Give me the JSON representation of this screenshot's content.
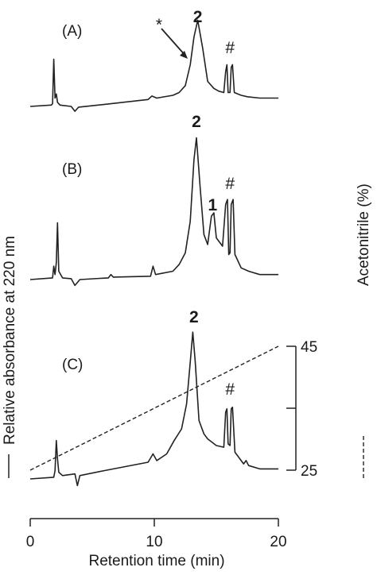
{
  "chart_data": {
    "type": "line",
    "title": "",
    "xlabel": "Retention time (min)",
    "ylabel_left": "Relative absorbance at 220 nm",
    "ylabel_right": "Acetonitrile (%)",
    "xlim": [
      0,
      20
    ],
    "x_ticks": [
      {
        "value": 0,
        "label": "0"
      },
      {
        "value": 10,
        "label": "10"
      },
      {
        "value": 20,
        "label": "20"
      }
    ],
    "y2_ticks": [
      {
        "value": 45,
        "label": "45"
      },
      {
        "value": 35,
        "label": ""
      },
      {
        "value": 25,
        "label": "25"
      }
    ],
    "y2lim": [
      25,
      45
    ],
    "legend": [
      {
        "symbol": "solid",
        "label": "Relative absorbance at 220 nm"
      },
      {
        "symbol": "dashed",
        "label": "Acetonitrile (%)"
      }
    ],
    "panels": [
      {
        "label": "(A)",
        "peak_labels": [
          {
            "text": "2",
            "x": 13.5,
            "bold": true
          },
          {
            "text": "#",
            "x": 16.1,
            "bold": false
          },
          {
            "text": "*",
            "x": 11.4,
            "bold": false
          }
        ],
        "trace": [
          [
            0,
            0
          ],
          [
            1.7,
            0.1
          ],
          [
            1.8,
            0.2
          ],
          [
            1.9,
            3.4
          ],
          [
            2.0,
            0.6
          ],
          [
            2.1,
            0.9
          ],
          [
            2.2,
            0.3
          ],
          [
            2.4,
            0.1
          ],
          [
            3.3,
            0.0
          ],
          [
            3.6,
            -0.35
          ],
          [
            3.9,
            -0.05
          ],
          [
            6,
            0.15
          ],
          [
            9.5,
            0.5
          ],
          [
            9.8,
            0.75
          ],
          [
            10.2,
            0.6
          ],
          [
            11.5,
            0.8
          ],
          [
            12.0,
            1.0
          ],
          [
            12.5,
            1.5
          ],
          [
            12.9,
            3.0
          ],
          [
            13.2,
            5.0
          ],
          [
            13.5,
            6.2
          ],
          [
            13.9,
            4.2
          ],
          [
            14.3,
            1.8
          ],
          [
            14.8,
            1.3
          ],
          [
            15.2,
            1.1
          ],
          [
            15.6,
            1.0
          ],
          [
            15.75,
            2.5
          ],
          [
            15.85,
            3.0
          ],
          [
            15.95,
            1.0
          ],
          [
            16.1,
            1.0
          ],
          [
            16.2,
            2.8
          ],
          [
            16.3,
            3.0
          ],
          [
            16.45,
            1.0
          ],
          [
            17,
            0.8
          ],
          [
            17.5,
            0.7
          ],
          [
            18.5,
            0.6
          ],
          [
            20,
            0.6
          ]
        ]
      },
      {
        "label": "(B)",
        "peak_labels": [
          {
            "text": "2",
            "x": 13.4,
            "bold": true
          },
          {
            "text": "1",
            "x": 14.7,
            "bold": true
          },
          {
            "text": "#",
            "x": 16.1,
            "bold": false
          }
        ],
        "trace": [
          [
            0,
            0
          ],
          [
            1.8,
            0.1
          ],
          [
            1.9,
            0.8
          ],
          [
            2.0,
            0.3
          ],
          [
            2.1,
            1.0
          ],
          [
            2.2,
            3.4
          ],
          [
            2.3,
            0.5
          ],
          [
            2.6,
            0.1
          ],
          [
            3.3,
            0.05
          ],
          [
            3.6,
            -0.35
          ],
          [
            4.0,
            0.0
          ],
          [
            6.3,
            0.1
          ],
          [
            6.5,
            0.3
          ],
          [
            6.7,
            0.15
          ],
          [
            9.7,
            0.2
          ],
          [
            9.9,
            0.8
          ],
          [
            10.1,
            0.3
          ],
          [
            11.5,
            0.5
          ],
          [
            12.0,
            0.9
          ],
          [
            12.5,
            1.6
          ],
          [
            12.9,
            3.5
          ],
          [
            13.2,
            7.2
          ],
          [
            13.4,
            8.5
          ],
          [
            13.7,
            5.5
          ],
          [
            14.0,
            2.7
          ],
          [
            14.3,
            2.1
          ],
          [
            14.6,
            3.8
          ],
          [
            14.8,
            4.0
          ],
          [
            15.0,
            2.5
          ],
          [
            15.5,
            2.0
          ],
          [
            15.75,
            4.5
          ],
          [
            15.9,
            4.8
          ],
          [
            16.0,
            1.5
          ],
          [
            16.1,
            1.6
          ],
          [
            16.2,
            4.5
          ],
          [
            16.35,
            4.8
          ],
          [
            16.5,
            1.5
          ],
          [
            17,
            0.7
          ],
          [
            17.6,
            0.5
          ],
          [
            18.5,
            0.3
          ],
          [
            20,
            0.3
          ]
        ]
      },
      {
        "label": "(C)",
        "peak_labels": [
          {
            "text": "2",
            "x": 13.2,
            "bold": true
          },
          {
            "text": "#",
            "x": 16.1,
            "bold": false
          }
        ],
        "trace": [
          [
            0,
            0
          ],
          [
            1.9,
            0.1
          ],
          [
            2.0,
            0.5
          ],
          [
            2.1,
            2.3
          ],
          [
            2.2,
            1.2
          ],
          [
            2.3,
            0.4
          ],
          [
            2.6,
            0.2
          ],
          [
            3.6,
            0.3
          ],
          [
            3.8,
            -0.4
          ],
          [
            4.0,
            0.2
          ],
          [
            6,
            0.5
          ],
          [
            9.5,
            1.0
          ],
          [
            9.9,
            1.5
          ],
          [
            10.2,
            1.1
          ],
          [
            11.0,
            1.5
          ],
          [
            11.6,
            2.3
          ],
          [
            12.2,
            3.0
          ],
          [
            12.6,
            4.5
          ],
          [
            12.9,
            7.0
          ],
          [
            13.1,
            8.8
          ],
          [
            13.3,
            7.0
          ],
          [
            13.6,
            3.5
          ],
          [
            14.0,
            2.7
          ],
          [
            14.3,
            2.4
          ],
          [
            15.0,
            2.0
          ],
          [
            15.6,
            1.9
          ],
          [
            15.75,
            4.0
          ],
          [
            15.85,
            4.2
          ],
          [
            15.95,
            2.1
          ],
          [
            16.1,
            2.0
          ],
          [
            16.2,
            4.2
          ],
          [
            16.3,
            4.3
          ],
          [
            16.5,
            1.6
          ],
          [
            17.2,
            0.9
          ],
          [
            17.4,
            1.1
          ],
          [
            17.6,
            0.8
          ],
          [
            18.5,
            0.6
          ],
          [
            20,
            0.6
          ]
        ],
        "acetonitrile_line": [
          [
            0,
            25
          ],
          [
            20,
            45
          ]
        ]
      }
    ]
  }
}
